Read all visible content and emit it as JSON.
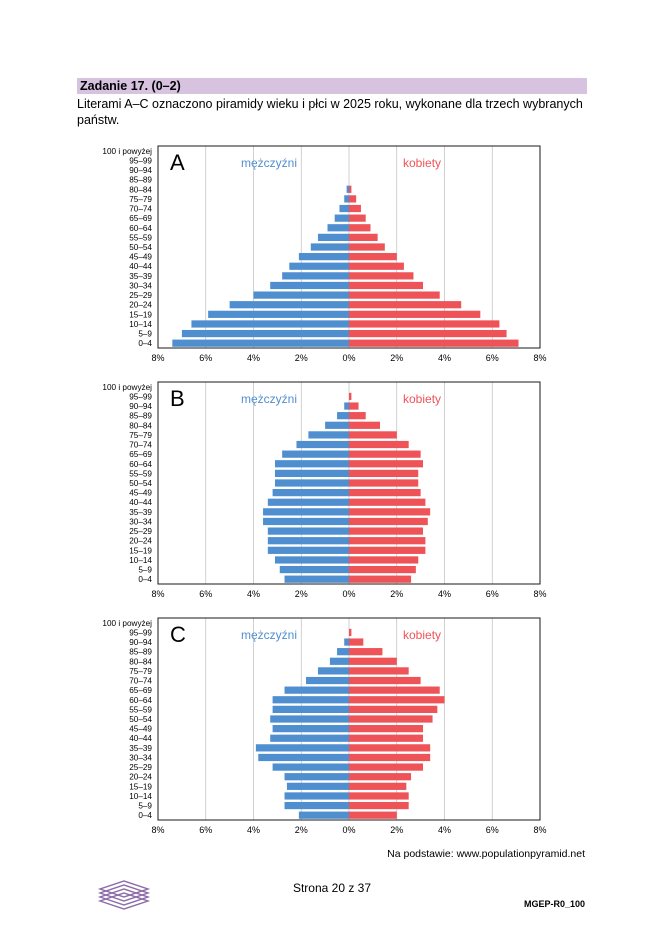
{
  "task": {
    "title": "Zadanie 17. (0–2)",
    "text": "Literami A–C oznaczono piramidy wieku i płci w 2025 roku, wykonane dla trzech wybranych państw."
  },
  "colors": {
    "male": "#4f8fd0",
    "female": "#ee5358",
    "grid": "#bdbdbd",
    "frame": "#1a1a1a"
  },
  "legend": {
    "male": "mężczyźni",
    "female": "kobiety"
  },
  "source": "Na podstawie: www.populationpyramid.net",
  "footer": {
    "page": "Strona 20 z 37",
    "code": "MGEP-R0_100"
  },
  "chart_data": [
    {
      "type": "bar",
      "title": "A",
      "orientation": "population-pyramid",
      "categories": [
        "0–4",
        "5–9",
        "10–14",
        "15–19",
        "20–24",
        "25–29",
        "30–34",
        "35–39",
        "40–44",
        "45–49",
        "50–54",
        "55–59",
        "60–64",
        "65–69",
        "70–74",
        "75–79",
        "80–84",
        "85–89",
        "90–94",
        "95–99",
        "100 i powyżej"
      ],
      "series": [
        {
          "name": "mężczyźni",
          "values": [
            7.4,
            7.0,
            6.6,
            5.9,
            5.0,
            4.0,
            3.3,
            2.8,
            2.5,
            2.1,
            1.6,
            1.3,
            0.9,
            0.6,
            0.4,
            0.2,
            0.1,
            0.0,
            0.0,
            0.0,
            0.0
          ]
        },
        {
          "name": "kobiety",
          "values": [
            7.1,
            6.6,
            6.3,
            5.5,
            4.7,
            3.8,
            3.1,
            2.7,
            2.3,
            2.0,
            1.5,
            1.2,
            0.9,
            0.7,
            0.5,
            0.3,
            0.1,
            0.0,
            0.0,
            0.0,
            0.0
          ]
        }
      ],
      "x_tick_labels": [
        "8%",
        "6%",
        "4%",
        "2%",
        "0%",
        "2%",
        "4%",
        "6%",
        "8%"
      ],
      "xlim": [
        -8,
        8
      ],
      "grid": true
    },
    {
      "type": "bar",
      "title": "B",
      "orientation": "population-pyramid",
      "categories": [
        "0–4",
        "5–9",
        "10–14",
        "15–19",
        "20–24",
        "25–29",
        "30–34",
        "35–39",
        "40–44",
        "45–49",
        "50–54",
        "55–59",
        "60–64",
        "65–69",
        "70–74",
        "75–79",
        "80–84",
        "85–89",
        "90–94",
        "95–99",
        "100 i powyżej"
      ],
      "series": [
        {
          "name": "mężczyźni",
          "values": [
            2.7,
            2.9,
            3.1,
            3.4,
            3.4,
            3.4,
            3.6,
            3.6,
            3.4,
            3.2,
            3.1,
            3.1,
            3.1,
            2.8,
            2.2,
            1.7,
            1.0,
            0.5,
            0.2,
            0.0,
            0.0
          ]
        },
        {
          "name": "kobiety",
          "values": [
            2.6,
            2.8,
            2.9,
            3.2,
            3.2,
            3.1,
            3.3,
            3.4,
            3.2,
            3.0,
            2.9,
            2.9,
            3.1,
            3.0,
            2.5,
            2.0,
            1.3,
            0.7,
            0.4,
            0.1,
            0.0
          ]
        }
      ],
      "x_tick_labels": [
        "8%",
        "6%",
        "4%",
        "2%",
        "0%",
        "2%",
        "4%",
        "6%",
        "8%"
      ],
      "xlim": [
        -8,
        8
      ],
      "grid": true
    },
    {
      "type": "bar",
      "title": "C",
      "orientation": "population-pyramid",
      "categories": [
        "0–4",
        "5–9",
        "10–14",
        "15–19",
        "20–24",
        "25–29",
        "30–34",
        "35–39",
        "40–44",
        "45–49",
        "50–54",
        "55–59",
        "60–64",
        "65–69",
        "70–74",
        "75–79",
        "80–84",
        "85–89",
        "90–94",
        "95–99",
        "100 i powyżej"
      ],
      "series": [
        {
          "name": "mężczyźni",
          "values": [
            2.1,
            2.7,
            2.7,
            2.6,
            2.7,
            3.2,
            3.8,
            3.9,
            3.3,
            3.2,
            3.3,
            3.2,
            3.2,
            2.7,
            1.8,
            1.3,
            0.8,
            0.5,
            0.2,
            0.0,
            0.0
          ]
        },
        {
          "name": "kobiety",
          "values": [
            2.0,
            2.5,
            2.5,
            2.4,
            2.6,
            3.1,
            3.4,
            3.4,
            3.1,
            3.1,
            3.5,
            3.7,
            4.0,
            3.8,
            3.0,
            2.5,
            2.0,
            1.4,
            0.6,
            0.1,
            0.0
          ]
        }
      ],
      "x_tick_labels": [
        "8%",
        "6%",
        "4%",
        "2%",
        "0%",
        "2%",
        "4%",
        "6%",
        "8%"
      ],
      "xlim": [
        -8,
        8
      ],
      "grid": true
    }
  ]
}
